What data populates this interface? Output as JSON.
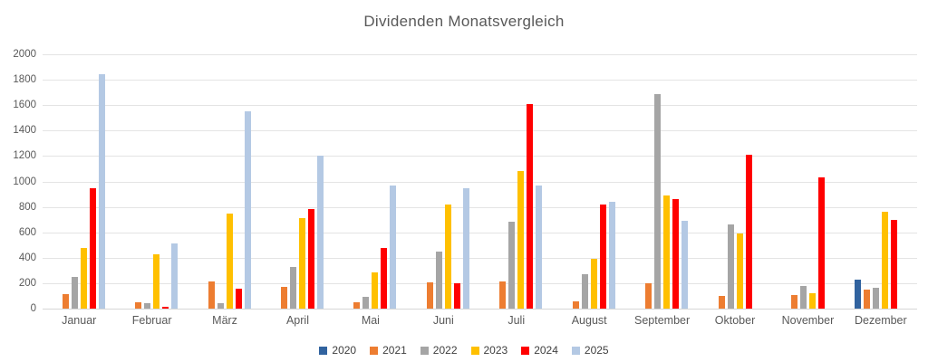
{
  "title": "Dividenden Monatsvergleich",
  "colors": {
    "background": "#ffffff",
    "gridline": "#e4e4e4",
    "axis_text": "#595959",
    "title_text": "#595959",
    "legend_text": "#404040"
  },
  "chart_data": {
    "type": "bar",
    "title": "Dividenden Monatsvergleich",
    "xlabel": "",
    "ylabel": "",
    "ylim": [
      0,
      2000
    ],
    "ytick_step": 200,
    "grid": true,
    "legend_position": "bottom",
    "categories": [
      "Januar",
      "Februar",
      "März",
      "April",
      "Mai",
      "Juni",
      "Juli",
      "August",
      "September",
      "Oktober",
      "November",
      "Dezember"
    ],
    "series": [
      {
        "name": "2020",
        "color": "#31639F",
        "values": [
          0,
          0,
          0,
          0,
          0,
          0,
          0,
          0,
          0,
          0,
          0,
          230
        ]
      },
      {
        "name": "2021",
        "color": "#ED7D31",
        "values": [
          115,
          50,
          210,
          170,
          50,
          205,
          210,
          60,
          200,
          100,
          110,
          150
        ]
      },
      {
        "name": "2022",
        "color": "#A5A5A5",
        "values": [
          250,
          40,
          45,
          325,
          95,
          445,
          680,
          270,
          1690,
          660,
          180,
          165
        ]
      },
      {
        "name": "2023",
        "color": "#FFC000",
        "values": [
          480,
          430,
          745,
          710,
          285,
          820,
          1080,
          390,
          890,
          590,
          120,
          760
        ]
      },
      {
        "name": "2024",
        "color": "#FF0000",
        "values": [
          950,
          15,
          160,
          780,
          475,
          200,
          1610,
          820,
          860,
          1210,
          1030,
          700
        ]
      },
      {
        "name": "2025",
        "color": "#B4C9E4",
        "values": [
          1840,
          510,
          1550,
          1200,
          970,
          950,
          965,
          840,
          690,
          0,
          0,
          0
        ]
      }
    ]
  }
}
